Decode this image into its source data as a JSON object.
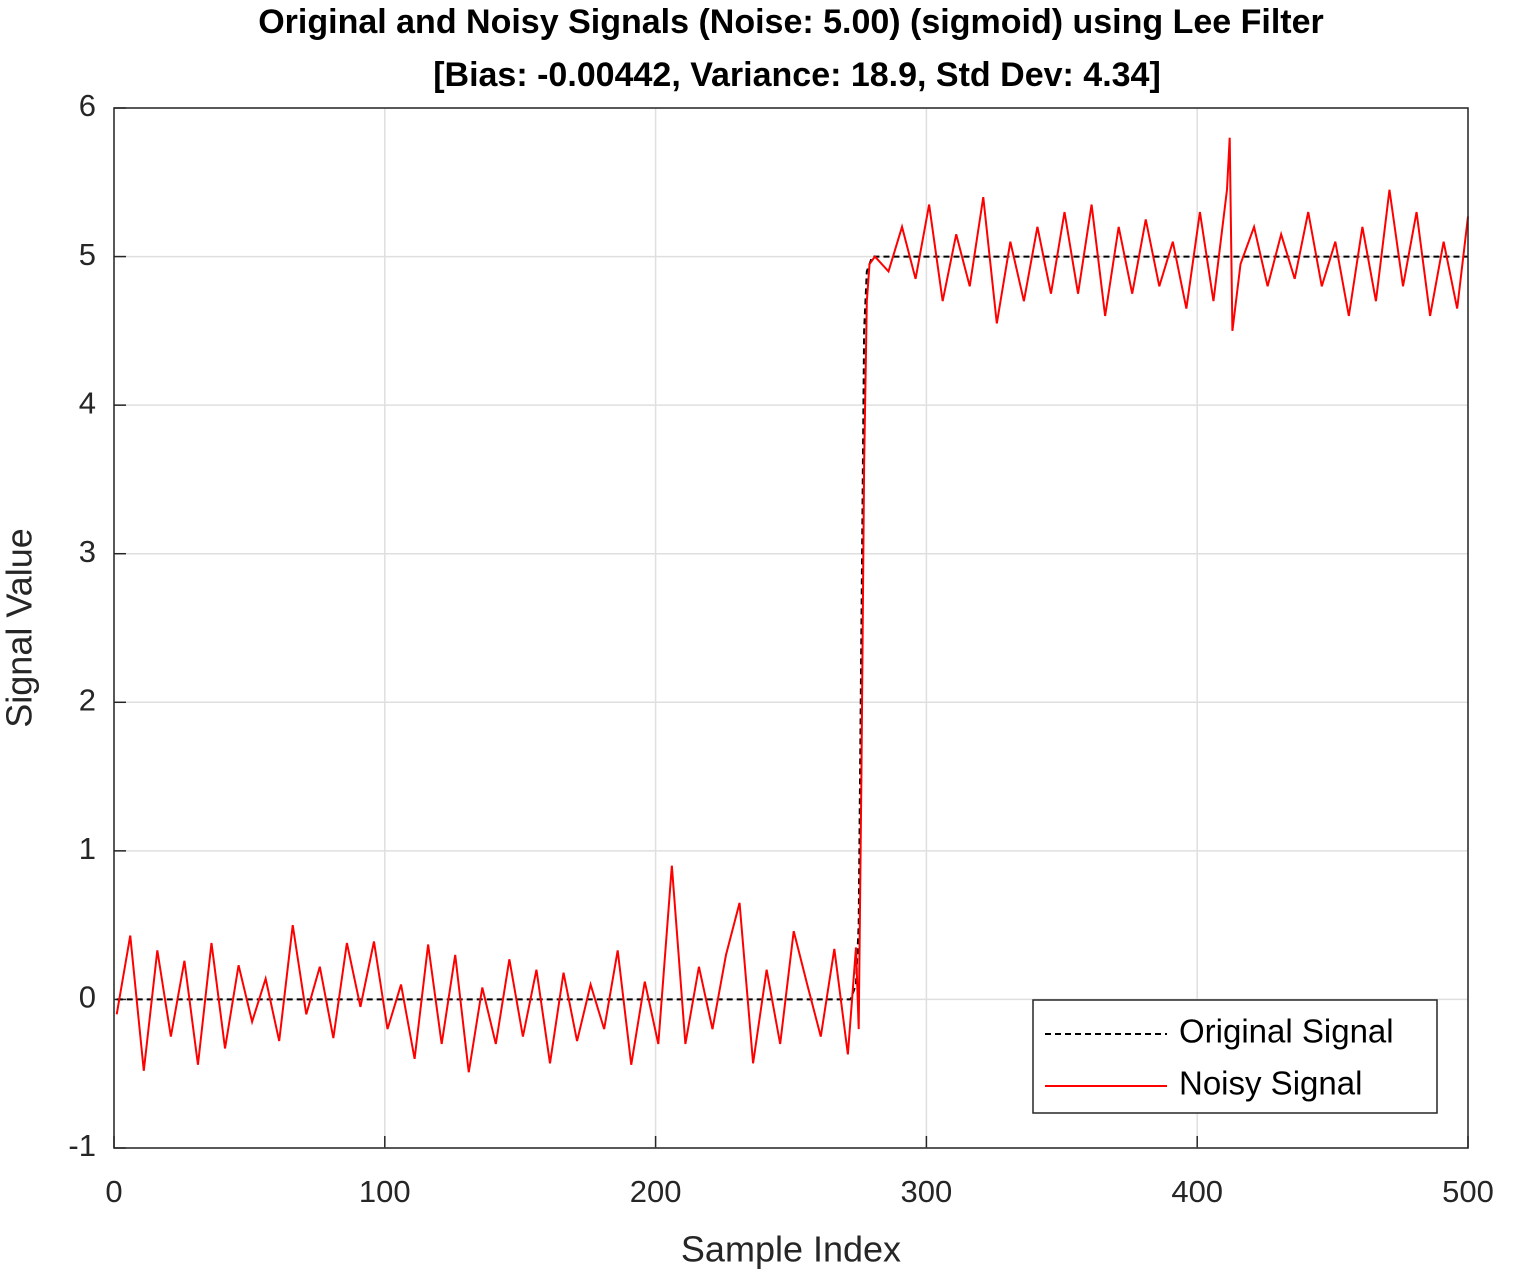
{
  "chart_data": {
    "type": "line",
    "title": [
      "Original and Noisy Signals (Noise: 5.00) (sigmoid) using Lee Filter",
      "[Bias: -0.00442, Variance: 18.9, Std Dev: 4.34]"
    ],
    "xlabel": "Sample Index",
    "ylabel": "Signal Value",
    "xlim": [
      0,
      500
    ],
    "ylim": [
      -1,
      6
    ],
    "xticks": [
      0,
      100,
      200,
      300,
      400,
      500
    ],
    "yticks": [
      -1,
      0,
      1,
      2,
      3,
      4,
      5,
      6
    ],
    "grid": true,
    "legend": "southeast",
    "series": [
      {
        "name": "Original Signal",
        "color": "#000000",
        "dashed": true,
        "x": [
          1,
          272,
          274,
          275,
          276,
          277,
          278,
          280,
          500
        ],
        "values": [
          0,
          0,
          0.1,
          0.5,
          2.5,
          4.5,
          4.9,
          5,
          5
        ]
      },
      {
        "name": "Noisy Signal",
        "color": "#ff0000",
        "dashed": false,
        "x": [
          1,
          6,
          11,
          16,
          21,
          26,
          31,
          36,
          41,
          46,
          51,
          56,
          61,
          66,
          71,
          76,
          81,
          86,
          91,
          96,
          101,
          106,
          111,
          116,
          121,
          126,
          131,
          136,
          141,
          146,
          151,
          156,
          161,
          166,
          171,
          176,
          181,
          186,
          191,
          196,
          201,
          206,
          211,
          216,
          221,
          226,
          231,
          236,
          241,
          246,
          251,
          256,
          261,
          266,
          271,
          274,
          275,
          276,
          277,
          278,
          279,
          281,
          286,
          291,
          296,
          301,
          306,
          311,
          316,
          321,
          326,
          331,
          336,
          341,
          346,
          351,
          356,
          361,
          366,
          371,
          376,
          381,
          386,
          391,
          396,
          401,
          406,
          411,
          412,
          413,
          416,
          421,
          426,
          431,
          436,
          441,
          446,
          451,
          456,
          461,
          466,
          471,
          476,
          481,
          486,
          491,
          496,
          500
        ],
        "values": [
          -0.1,
          0.43,
          -0.48,
          0.33,
          -0.25,
          0.26,
          -0.44,
          0.38,
          -0.33,
          0.23,
          -0.15,
          0.14,
          -0.28,
          0.5,
          -0.1,
          0.22,
          -0.26,
          0.38,
          -0.05,
          0.39,
          -0.2,
          0.1,
          -0.4,
          0.37,
          -0.3,
          0.3,
          -0.49,
          0.08,
          -0.3,
          0.27,
          -0.25,
          0.2,
          -0.43,
          0.18,
          -0.28,
          0.1,
          -0.2,
          0.33,
          -0.44,
          0.12,
          -0.3,
          0.9,
          -0.3,
          0.22,
          -0.2,
          0.3,
          0.65,
          -0.43,
          0.2,
          -0.3,
          0.46,
          0.1,
          -0.25,
          0.34,
          -0.37,
          0.35,
          -0.2,
          1.5,
          3.6,
          4.7,
          4.95,
          5.0,
          4.9,
          5.2,
          4.85,
          5.35,
          4.7,
          5.15,
          4.8,
          5.4,
          4.55,
          5.1,
          4.7,
          5.2,
          4.75,
          5.3,
          4.75,
          5.35,
          4.6,
          5.2,
          4.75,
          5.25,
          4.8,
          5.1,
          4.65,
          5.3,
          4.7,
          5.45,
          5.8,
          4.5,
          4.95,
          5.2,
          4.8,
          5.15,
          4.85,
          5.3,
          4.8,
          5.1,
          4.6,
          5.2,
          4.7,
          5.45,
          4.8,
          5.3,
          4.6,
          5.1,
          4.65,
          5.27
        ]
      }
    ]
  }
}
